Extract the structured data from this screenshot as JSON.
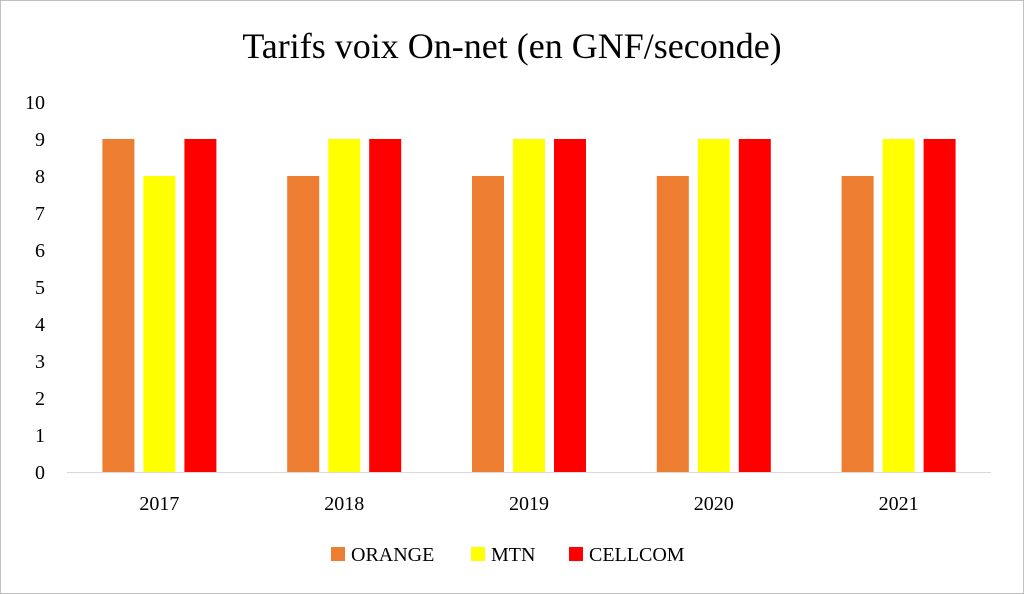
{
  "chart_data": {
    "type": "bar",
    "title": "Tarifs voix On-net (en GNF/seconde)",
    "xlabel": "",
    "ylabel": "",
    "categories": [
      "2017",
      "2018",
      "2019",
      "2020",
      "2021"
    ],
    "ylim": [
      0,
      10
    ],
    "yticks": [
      "0",
      "1",
      "2",
      "3",
      "4",
      "5",
      "6",
      "7",
      "8",
      "9",
      "10"
    ],
    "grid": false,
    "legend_position": "bottom",
    "series": [
      {
        "name": "ORANGE",
        "color": "#ED7D31",
        "values": [
          9,
          8,
          8,
          8,
          8
        ]
      },
      {
        "name": "MTN",
        "color": "#FFFF00",
        "values": [
          8,
          9,
          9,
          9,
          9
        ]
      },
      {
        "name": "CELLCOM",
        "color": "#FF0000",
        "values": [
          9,
          9,
          9,
          9,
          9
        ]
      }
    ]
  }
}
